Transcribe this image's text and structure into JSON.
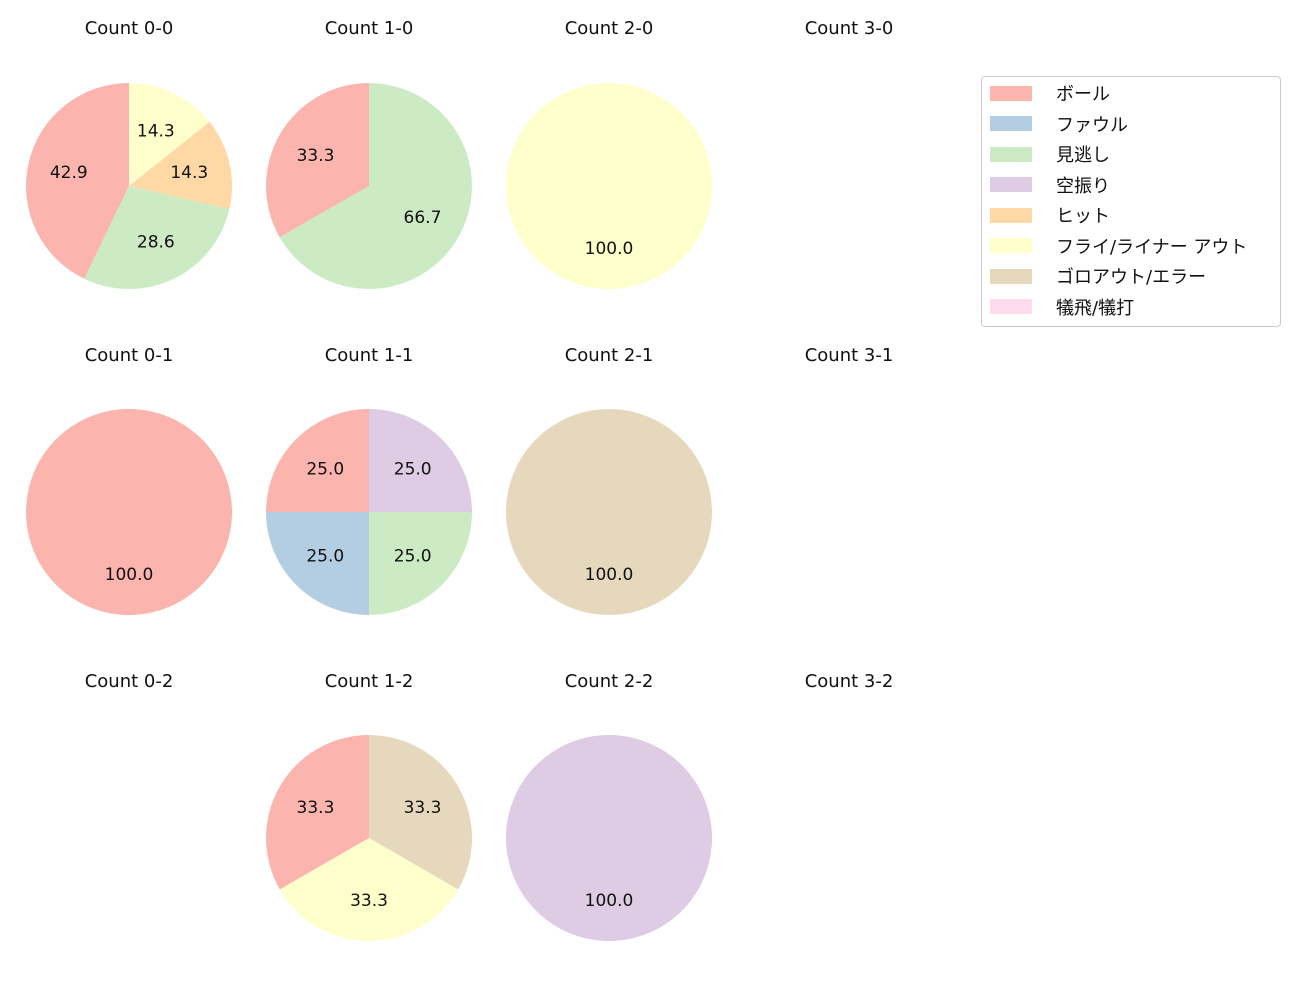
{
  "legend": {
    "items": [
      {
        "label": "ボール",
        "color": "#fbb4ae"
      },
      {
        "label": "ファウル",
        "color": "#b3cde3"
      },
      {
        "label": "見逃し",
        "color": "#ccebc5"
      },
      {
        "label": "空振り",
        "color": "#decbe4"
      },
      {
        "label": "ヒット",
        "color": "#fed9a6"
      },
      {
        "label": "フライ/ライナー アウト",
        "color": "#ffffcc"
      },
      {
        "label": "ゴロアウト/エラー",
        "color": "#e5d8bd"
      },
      {
        "label": "犠飛/犠打",
        "color": "#fddaec"
      }
    ]
  },
  "chart_data": [
    {
      "type": "pie",
      "title": "Count 0-0",
      "labels": [
        "ボール",
        "見逃し",
        "ヒット",
        "フライ/ライナー アウト"
      ],
      "values": [
        42.9,
        28.6,
        14.3,
        14.3
      ]
    },
    {
      "type": "pie",
      "title": "Count 1-0",
      "labels": [
        "ボール",
        "見逃し"
      ],
      "values": [
        33.3,
        66.7
      ]
    },
    {
      "type": "pie",
      "title": "Count 2-0",
      "labels": [
        "フライ/ライナー アウト"
      ],
      "values": [
        100.0
      ]
    },
    {
      "type": "pie",
      "title": "Count 3-0",
      "labels": [],
      "values": []
    },
    {
      "type": "pie",
      "title": "Count 0-1",
      "labels": [
        "ボール"
      ],
      "values": [
        100.0
      ]
    },
    {
      "type": "pie",
      "title": "Count 1-1",
      "labels": [
        "ボール",
        "ファウル",
        "見逃し",
        "空振り"
      ],
      "values": [
        25.0,
        25.0,
        25.0,
        25.0
      ]
    },
    {
      "type": "pie",
      "title": "Count 2-1",
      "labels": [
        "ゴロアウト/エラー"
      ],
      "values": [
        100.0
      ]
    },
    {
      "type": "pie",
      "title": "Count 3-1",
      "labels": [],
      "values": []
    },
    {
      "type": "pie",
      "title": "Count 0-2",
      "labels": [],
      "values": []
    },
    {
      "type": "pie",
      "title": "Count 1-2",
      "labels": [
        "ボール",
        "フライ/ライナー アウト",
        "ゴロアウト/エラー"
      ],
      "values": [
        33.3,
        33.3,
        33.3
      ]
    },
    {
      "type": "pie",
      "title": "Count 2-2",
      "labels": [
        "空振り"
      ],
      "values": [
        100.0
      ]
    },
    {
      "type": "pie",
      "title": "Count 3-2",
      "labels": [],
      "values": []
    }
  ]
}
